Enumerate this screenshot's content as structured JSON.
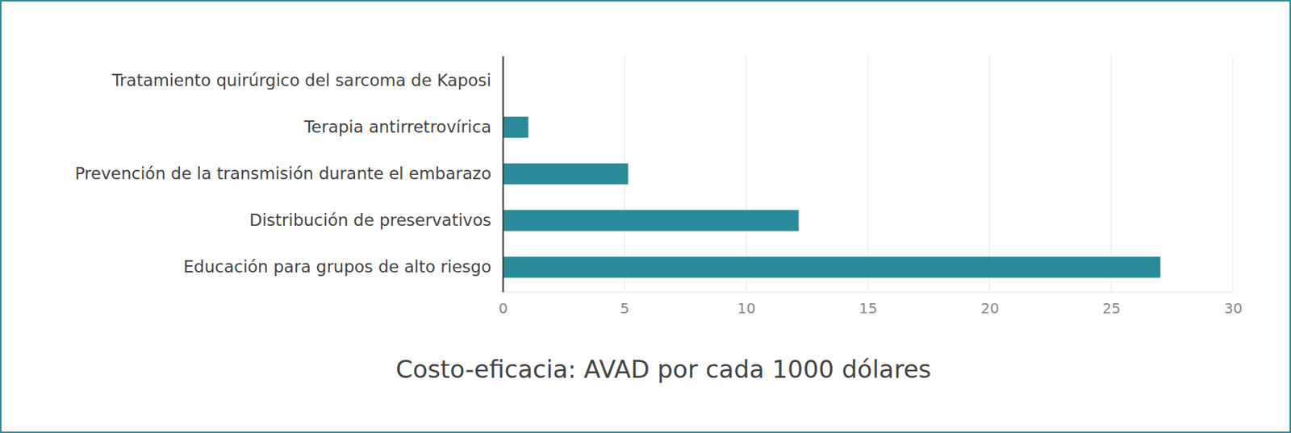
{
  "chart_data": {
    "type": "bar",
    "orientation": "horizontal",
    "title": "Costo-eficacia: AVAD por cada 1000 dólares",
    "categories": [
      "Tratamiento quirúrgico del sarcoma de Kaposi",
      "Terapia antirretrovírica",
      "Prevención de la transmisión durante el embarazo",
      "Distribución de preservativos",
      "Educación para grupos de alto riesgo"
    ],
    "values": [
      0,
      1.05,
      5.15,
      12.16,
      27.02
    ],
    "color": "#2a8c9a",
    "xlim": [
      0,
      30
    ],
    "xticks": [
      0,
      5,
      10,
      15,
      20,
      25,
      30
    ],
    "grid": true
  }
}
